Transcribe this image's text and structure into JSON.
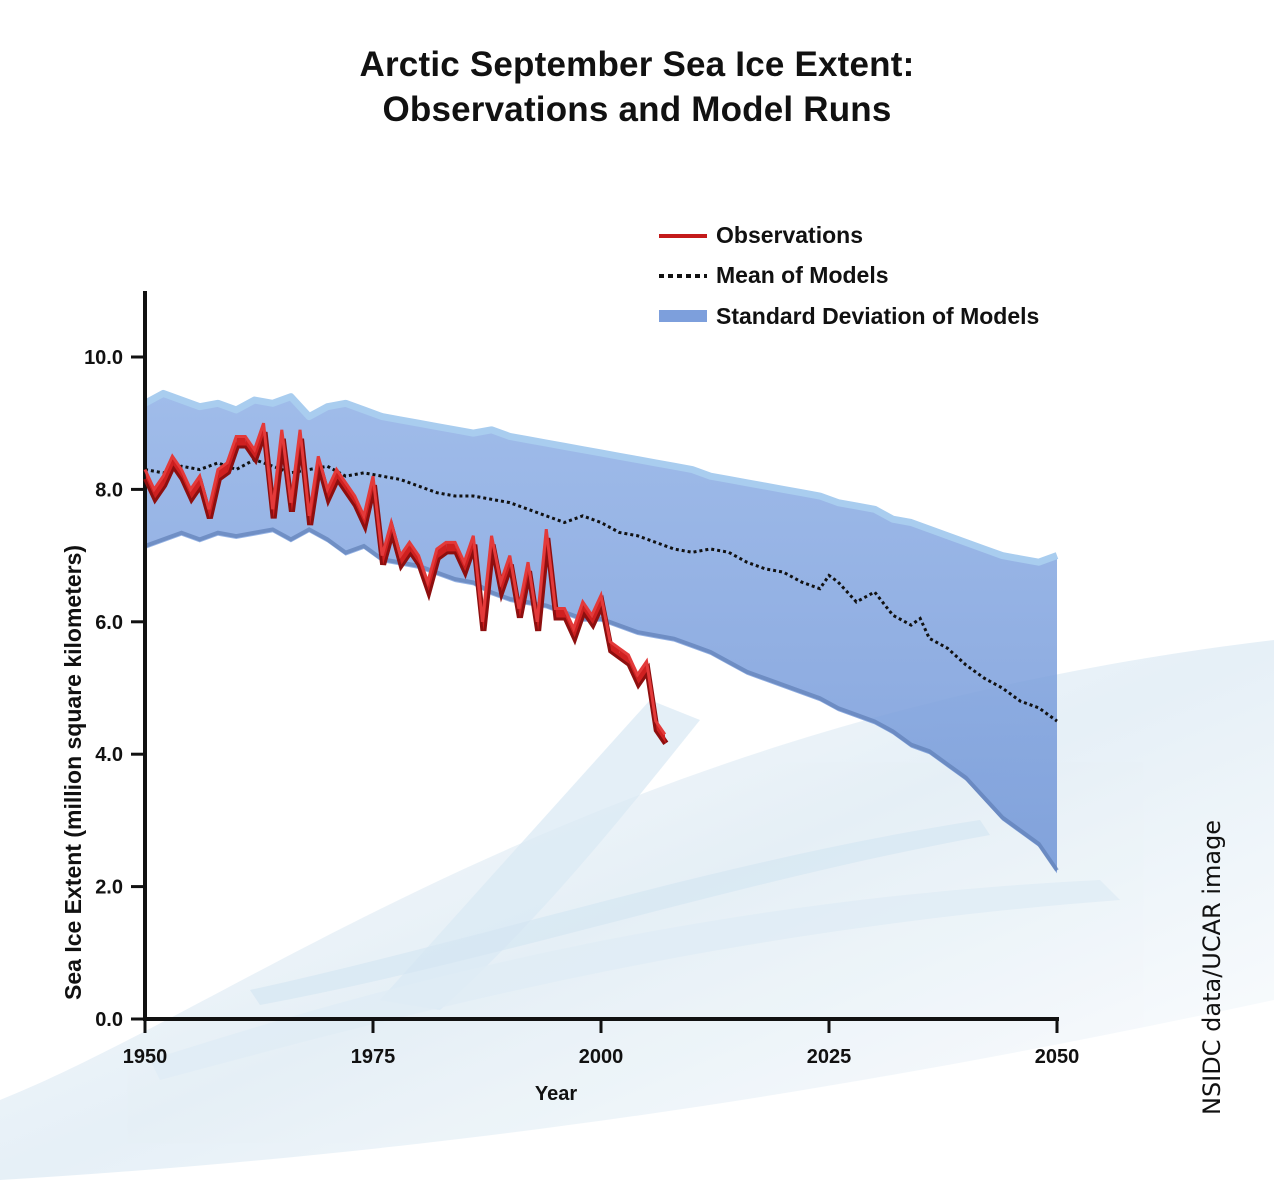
{
  "chart_data": {
    "type": "line",
    "title_lines": [
      "Arctic September Sea Ice Extent:",
      "Observations and Model Runs"
    ],
    "xlabel": "Year",
    "ylabel": "Sea Ice Extent (million square kilometers)",
    "xlim": [
      1950,
      2050
    ],
    "ylim": [
      0,
      11
    ],
    "x_ticks": [
      "1950",
      "1975",
      "2000",
      "2025",
      "2050"
    ],
    "y_ticks": [
      "0.0",
      "2.0",
      "4.0",
      "6.0",
      "8.0",
      "10.0"
    ],
    "legend_position": "top-right",
    "colors": {
      "observations": "#c41a1a",
      "mean": "#111111",
      "std_band": "#7d9fdc",
      "std_band_top": "#a9cdef"
    },
    "series": [
      {
        "name": "Observations",
        "style": "solid",
        "x": [
          1950,
          1951,
          1952,
          1953,
          1954,
          1955,
          1956,
          1957,
          1958,
          1959,
          1960,
          1961,
          1962,
          1963,
          1964,
          1965,
          1966,
          1967,
          1968,
          1969,
          1970,
          1971,
          1972,
          1973,
          1974,
          1975,
          1976,
          1977,
          1978,
          1979,
          1980,
          1981,
          1982,
          1983,
          1984,
          1985,
          1986,
          1987,
          1988,
          1989,
          1990,
          1991,
          1992,
          1993,
          1994,
          1995,
          1996,
          1997,
          1998,
          1999,
          2000,
          2001,
          2002,
          2003,
          2004,
          2005,
          2006,
          2007
        ],
        "values": [
          8.3,
          8.0,
          8.2,
          8.5,
          8.3,
          8.0,
          8.2,
          7.7,
          8.3,
          8.4,
          8.8,
          8.8,
          8.6,
          9.0,
          7.7,
          8.9,
          7.8,
          8.9,
          7.6,
          8.5,
          8.0,
          8.3,
          8.1,
          7.9,
          7.6,
          8.2,
          7.0,
          7.5,
          7.0,
          7.2,
          7.0,
          6.6,
          7.1,
          7.2,
          7.2,
          6.9,
          7.3,
          6.0,
          7.3,
          6.6,
          7.0,
          6.2,
          6.9,
          6.0,
          7.4,
          6.2,
          6.2,
          5.9,
          6.3,
          6.1,
          6.4,
          5.7,
          5.6,
          5.5,
          5.2,
          5.4,
          4.5,
          4.3
        ]
      },
      {
        "name": "Mean of Models",
        "style": "dotted",
        "x": [
          1950,
          1952,
          1954,
          1956,
          1958,
          1960,
          1962,
          1964,
          1966,
          1968,
          1970,
          1972,
          1974,
          1976,
          1978,
          1980,
          1982,
          1984,
          1986,
          1988,
          1990,
          1992,
          1994,
          1996,
          1998,
          2000,
          2002,
          2004,
          2006,
          2008,
          2010,
          2012,
          2014,
          2016,
          2018,
          2020,
          2022,
          2024,
          2025,
          2026,
          2028,
          2030,
          2032,
          2034,
          2035,
          2036,
          2038,
          2040,
          2042,
          2044,
          2046,
          2048,
          2050
        ],
        "values": [
          8.3,
          8.25,
          8.35,
          8.3,
          8.4,
          8.3,
          8.45,
          8.35,
          8.25,
          8.3,
          8.35,
          8.2,
          8.25,
          8.2,
          8.15,
          8.05,
          7.95,
          7.9,
          7.9,
          7.85,
          7.8,
          7.7,
          7.6,
          7.5,
          7.6,
          7.5,
          7.35,
          7.3,
          7.2,
          7.1,
          7.05,
          7.1,
          7.05,
          6.9,
          6.8,
          6.75,
          6.6,
          6.5,
          6.7,
          6.6,
          6.3,
          6.45,
          6.1,
          5.95,
          6.05,
          5.75,
          5.6,
          5.35,
          5.15,
          5.0,
          4.8,
          4.7,
          4.5
        ]
      },
      {
        "name": "Standard Deviation of Models",
        "style": "band",
        "x": [
          1950,
          1952,
          1954,
          1956,
          1958,
          1960,
          1962,
          1964,
          1966,
          1968,
          1970,
          1972,
          1974,
          1976,
          1978,
          1980,
          1982,
          1984,
          1986,
          1988,
          1990,
          1992,
          1994,
          1996,
          1998,
          2000,
          2002,
          2004,
          2006,
          2008,
          2010,
          2012,
          2014,
          2016,
          2018,
          2020,
          2022,
          2024,
          2026,
          2028,
          2030,
          2032,
          2034,
          2036,
          2038,
          2040,
          2042,
          2044,
          2046,
          2048,
          2050
        ],
        "upper": [
          9.3,
          9.45,
          9.35,
          9.25,
          9.3,
          9.2,
          9.35,
          9.3,
          9.4,
          9.1,
          9.25,
          9.3,
          9.2,
          9.1,
          9.05,
          9.0,
          8.95,
          8.9,
          8.85,
          8.9,
          8.8,
          8.75,
          8.7,
          8.65,
          8.6,
          8.55,
          8.5,
          8.45,
          8.4,
          8.35,
          8.3,
          8.2,
          8.15,
          8.1,
          8.05,
          8.0,
          7.95,
          7.9,
          7.8,
          7.75,
          7.7,
          7.55,
          7.5,
          7.4,
          7.3,
          7.2,
          7.1,
          7.0,
          6.95,
          6.9,
          7.0
        ],
        "lower": [
          7.1,
          7.2,
          7.3,
          7.2,
          7.3,
          7.25,
          7.3,
          7.35,
          7.2,
          7.35,
          7.2,
          7.0,
          7.1,
          6.9,
          6.85,
          6.8,
          6.7,
          6.6,
          6.55,
          6.4,
          6.3,
          6.25,
          6.2,
          6.1,
          6.0,
          6.0,
          5.9,
          5.8,
          5.75,
          5.7,
          5.6,
          5.5,
          5.35,
          5.2,
          5.1,
          5.0,
          4.9,
          4.8,
          4.65,
          4.55,
          4.45,
          4.3,
          4.1,
          4.0,
          3.8,
          3.6,
          3.3,
          3.0,
          2.8,
          2.6,
          2.2
        ]
      }
    ]
  },
  "legend": {
    "items": [
      {
        "label": "Observations"
      },
      {
        "label": "Mean of Models"
      },
      {
        "label": "Standard Deviation of Models"
      }
    ]
  },
  "credit": "NSIDC data/UCAR image"
}
